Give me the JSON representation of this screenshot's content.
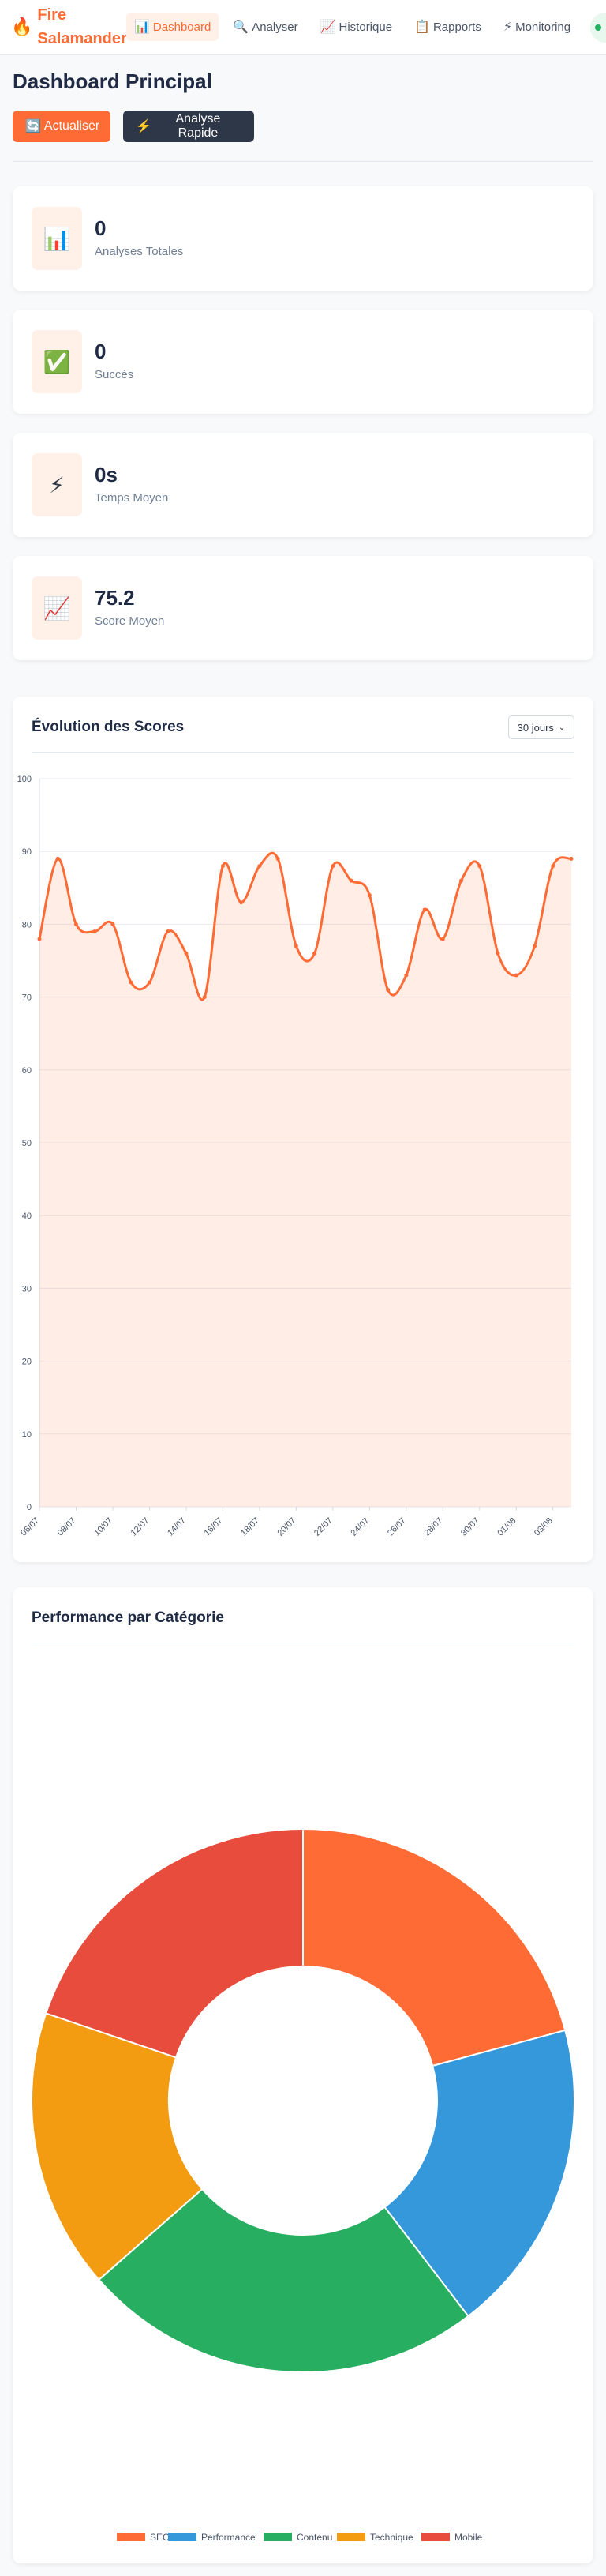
{
  "brand": {
    "name": "Fire Salamander",
    "icon": "fire-icon"
  },
  "nav": [
    {
      "label": "Dashboard",
      "icon": "📊",
      "active": true
    },
    {
      "label": "Analyser",
      "icon": "🔍",
      "active": false
    },
    {
      "label": "Historique",
      "icon": "📈",
      "active": false
    },
    {
      "label": "Rapports",
      "icon": "📋",
      "active": false
    },
    {
      "label": "Monitoring",
      "icon": "⚡",
      "active": false
    }
  ],
  "page": {
    "title": "Dashboard Principal",
    "refresh_label": "Actualiser",
    "quick_label": "Analyse Rapide"
  },
  "stats": [
    {
      "value": "0",
      "label": "Analyses Totales",
      "icon": "📊"
    },
    {
      "value": "0",
      "label": "Succès",
      "icon": "✅"
    },
    {
      "value": "0s",
      "label": "Temps Moyen",
      "icon": "⚡"
    },
    {
      "value": "75.2",
      "label": "Score Moyen",
      "icon": "📈"
    }
  ],
  "scores_chart": {
    "title": "Évolution des Scores",
    "range_label": "30 jours"
  },
  "category_chart": {
    "title": "Performance par Catégorie"
  },
  "colors": {
    "accent": "#ff6b35",
    "dark": "#2d3748"
  },
  "chart_data": [
    {
      "type": "line",
      "title": "Évolution des Scores",
      "x": [
        "06/07",
        "07/07",
        "08/07",
        "09/07",
        "10/07",
        "11/07",
        "12/07",
        "13/07",
        "14/07",
        "15/07",
        "16/07",
        "17/07",
        "18/07",
        "19/07",
        "20/07",
        "21/07",
        "22/07",
        "23/07",
        "24/07",
        "25/07",
        "26/07",
        "27/07",
        "28/07",
        "29/07",
        "30/07",
        "31/07",
        "01/08",
        "02/08",
        "03/08",
        "04/08"
      ],
      "tick_labels": [
        "06/07",
        "08/07",
        "10/07",
        "12/07",
        "14/07",
        "16/07",
        "18/07",
        "20/07",
        "22/07",
        "24/07",
        "26/07",
        "28/07",
        "30/07",
        "01/08",
        "03/08"
      ],
      "series": [
        {
          "values": [
            78,
            89,
            80,
            79,
            80,
            72,
            72,
            79,
            76,
            70,
            88,
            83,
            88,
            89,
            77,
            76,
            88,
            86,
            84,
            71,
            73,
            82,
            78,
            86,
            88,
            76,
            73,
            77,
            88,
            89
          ]
        }
      ],
      "ylim": [
        0,
        100
      ],
      "yticks": [
        0,
        10,
        20,
        30,
        40,
        50,
        60,
        70,
        80,
        90,
        100
      ],
      "grid": true,
      "color": "#ff6b35"
    },
    {
      "type": "pie",
      "title": "Performance par Catégorie",
      "categories": [
        "SEO",
        "Performance",
        "Contenu",
        "Technique",
        "Mobile"
      ],
      "values": [
        20,
        18,
        23,
        16,
        19
      ],
      "colors": [
        "#ff6b35",
        "#3498db",
        "#27ae60",
        "#f39c12",
        "#e74c3c"
      ],
      "legend": "bottom"
    }
  ]
}
